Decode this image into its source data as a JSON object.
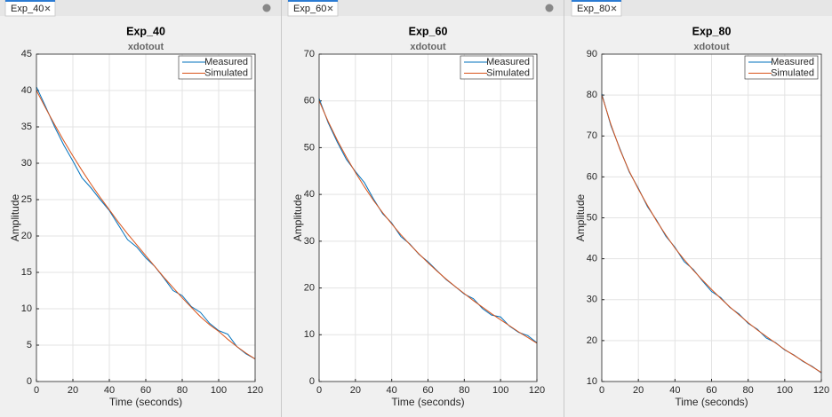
{
  "tabs": [
    "Exp_40",
    "Exp_60",
    "Exp_80"
  ],
  "chart_data": [
    {
      "type": "line",
      "title": "Exp_40",
      "subtitle": "xdotout",
      "x_label": "Time (seconds)",
      "y_label": "Amplitude",
      "x": [
        0,
        5,
        10,
        15,
        20,
        25,
        30,
        35,
        40,
        45,
        50,
        55,
        60,
        65,
        70,
        75,
        80,
        85,
        90,
        95,
        100,
        105,
        110,
        115,
        120
      ],
      "series": [
        {
          "name": "Measured",
          "color": "#0072bd",
          "values": [
            40.5,
            37.8,
            35.0,
            32.5,
            30.3,
            28.0,
            26.6,
            25.0,
            23.5,
            21.5,
            19.5,
            18.5,
            17.0,
            15.8,
            14.2,
            12.5,
            11.8,
            10.3,
            9.5,
            8.0,
            7.0,
            6.5,
            4.8,
            3.8,
            3.1
          ]
        },
        {
          "name": "Simulated",
          "color": "#d95319",
          "values": [
            40,
            37.6,
            35.3,
            33.1,
            31,
            29,
            27.1,
            25.3,
            23.6,
            21.9,
            20.3,
            18.8,
            17.3,
            15.8,
            14.3,
            12.9,
            11.5,
            10.2,
            8.9,
            7.8,
            6.9,
            5.8,
            4.8,
            3.9,
            3.1
          ]
        }
      ],
      "xlim": [
        0,
        120
      ],
      "xticks": [
        0,
        20,
        40,
        60,
        80,
        100,
        120
      ],
      "ylim": [
        0,
        45
      ],
      "yticks": [
        0,
        5,
        10,
        15,
        20,
        25,
        30,
        35,
        40,
        45
      ],
      "grid": true,
      "legend": "northeast"
    },
    {
      "type": "line",
      "title": "Exp_60",
      "subtitle": "xdotout",
      "x_label": "Time (seconds)",
      "y_label": "Amplitude",
      "x": [
        0,
        5,
        10,
        15,
        20,
        25,
        30,
        35,
        40,
        45,
        50,
        55,
        60,
        65,
        70,
        75,
        80,
        85,
        90,
        95,
        100,
        105,
        110,
        115,
        120
      ],
      "series": [
        {
          "name": "Measured",
          "color": "#0072bd",
          "values": [
            60.5,
            55.3,
            51.2,
            47.5,
            44.9,
            42.5,
            39.0,
            35.9,
            33.9,
            31.0,
            29.4,
            27.2,
            25.6,
            23.7,
            21.8,
            20.3,
            18.7,
            17.7,
            15.6,
            14.2,
            13.8,
            11.8,
            10.5,
            9.8,
            8.3
          ]
        },
        {
          "name": "Simulated",
          "color": "#d95319",
          "values": [
            60,
            55.6,
            51.6,
            48,
            44.7,
            41.6,
            38.7,
            36.1,
            33.7,
            31.4,
            29.3,
            27.3,
            25.4,
            23.6,
            21.9,
            20.3,
            18.8,
            17.3,
            15.9,
            14.5,
            13.2,
            11.9,
            10.6,
            9.4,
            8.2
          ]
        }
      ],
      "xlim": [
        0,
        120
      ],
      "xticks": [
        0,
        20,
        40,
        60,
        80,
        100,
        120
      ],
      "ylim": [
        0,
        70
      ],
      "yticks": [
        0,
        10,
        20,
        30,
        40,
        50,
        60,
        70
      ],
      "grid": true,
      "legend": "northeast"
    },
    {
      "type": "line",
      "title": "Exp_80",
      "subtitle": "xdotout",
      "x_label": "Time (seconds)",
      "y_label": "Amplitude",
      "x": [
        0,
        5,
        10,
        15,
        20,
        25,
        30,
        35,
        40,
        45,
        50,
        55,
        60,
        65,
        70,
        75,
        80,
        85,
        90,
        95,
        100,
        105,
        110,
        115,
        120
      ],
      "series": [
        {
          "name": "Measured",
          "color": "#0072bd",
          "values": [
            80.3,
            72.5,
            66.8,
            61.2,
            57.2,
            52.7,
            49.4,
            45.5,
            42.8,
            39.3,
            37.4,
            34.6,
            32.0,
            30.5,
            28.1,
            26.5,
            24.2,
            22.8,
            20.6,
            19.5,
            17.7,
            16.5,
            14.9,
            13.7,
            12.1
          ]
        },
        {
          "name": "Simulated",
          "color": "#d95319",
          "values": [
            80,
            72.8,
            66.6,
            61.4,
            57,
            53,
            49.2,
            45.8,
            42.6,
            39.8,
            37.2,
            34.8,
            32.5,
            30.3,
            28.2,
            26.3,
            24.4,
            22.6,
            21,
            19.4,
            17.8,
            16.4,
            15,
            13.6,
            12.2
          ]
        }
      ],
      "xlim": [
        0,
        120
      ],
      "xticks": [
        0,
        20,
        40,
        60,
        80,
        100,
        120
      ],
      "ylim": [
        10,
        90
      ],
      "yticks": [
        10,
        20,
        30,
        40,
        50,
        60,
        70,
        80,
        90
      ],
      "grid": true,
      "legend": "northeast"
    }
  ]
}
